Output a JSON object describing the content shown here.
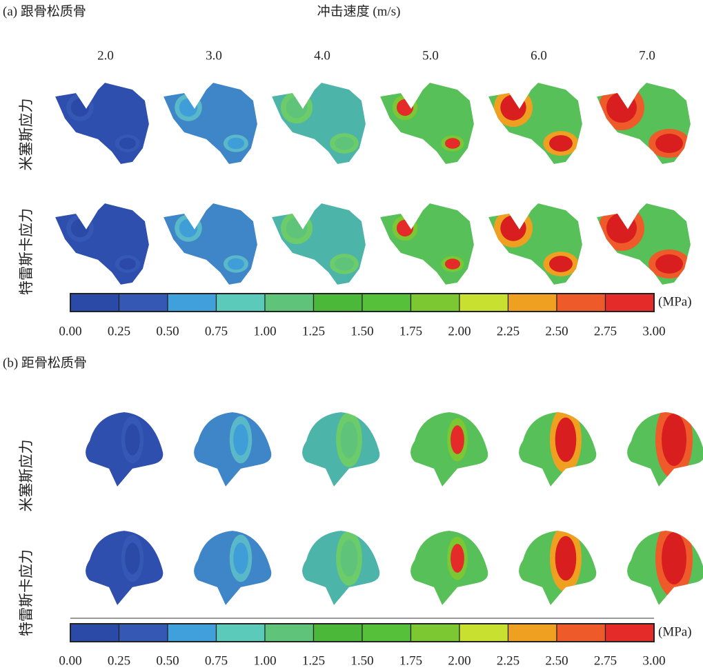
{
  "panel_a": {
    "title": "(a) 跟骨松质骨",
    "x_title": "冲击速度 (m/s)",
    "speeds": [
      "2.0",
      "3.0",
      "4.0",
      "5.0",
      "6.0",
      "7.0"
    ],
    "rows": [
      "米塞斯应力",
      "特雷斯卡应力"
    ]
  },
  "panel_b": {
    "title": "(b) 距骨松质骨",
    "rows": [
      "米塞斯应力",
      "特雷斯卡应力"
    ]
  },
  "colorbar": {
    "unit": "(MPa)",
    "colors": [
      "#2b4aa8",
      "#3558b5",
      "#3fa0dc",
      "#5ccabb",
      "#5fc47a",
      "#4cb83a",
      "#56c03a",
      "#7cc832",
      "#c8e030",
      "#f0a020",
      "#ee5a2a",
      "#e52a2a"
    ],
    "ticks": [
      "0.00",
      "0.25",
      "0.50",
      "0.75",
      "1.00",
      "1.25",
      "1.50",
      "1.75",
      "2.00",
      "2.25",
      "2.50",
      "2.75",
      "3.00"
    ]
  }
}
